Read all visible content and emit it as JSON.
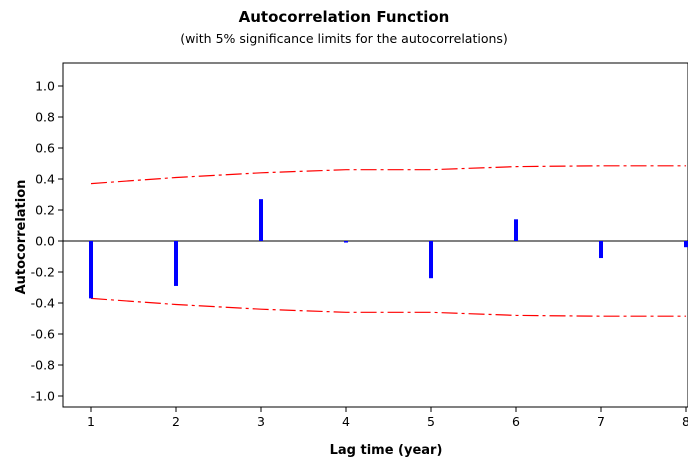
{
  "chart_data": {
    "type": "bar",
    "title": "Autocorrelation Function",
    "subtitle": "(with 5% significance limits for the autocorrelations)",
    "xlabel": "Lag time (year)",
    "ylabel": "Autocorrelation",
    "xlim": [
      1,
      8
    ],
    "ylim": [
      -1.0,
      1.0
    ],
    "x_ticks": [
      "1",
      "2",
      "3",
      "4",
      "5",
      "6",
      "7",
      "8"
    ],
    "y_ticks": [
      "1.0",
      "0.8",
      "0.6",
      "0.4",
      "0.2",
      "0.0",
      "-0.2",
      "-0.4",
      "-0.6",
      "-0.8",
      "-1.0"
    ],
    "grid": false,
    "series": [
      {
        "x": [
          1,
          2,
          3,
          4,
          5,
          6,
          7,
          8
        ],
        "values": [
          -0.37,
          -0.29,
          0.27,
          -0.01,
          -0.24,
          0.14,
          -0.11,
          -0.04
        ]
      }
    ],
    "significance_limits": {
      "x": [
        1,
        2,
        3,
        4,
        5,
        6,
        7,
        8
      ],
      "upper": [
        0.37,
        0.41,
        0.44,
        0.46,
        0.46,
        0.48,
        0.485,
        0.485
      ],
      "lower": [
        -0.37,
        -0.41,
        -0.44,
        -0.46,
        -0.46,
        -0.48,
        -0.485,
        -0.485
      ]
    },
    "colors": {
      "bars": "#0000ff",
      "limits": "#ff0000",
      "zero_line": "#000000"
    }
  }
}
